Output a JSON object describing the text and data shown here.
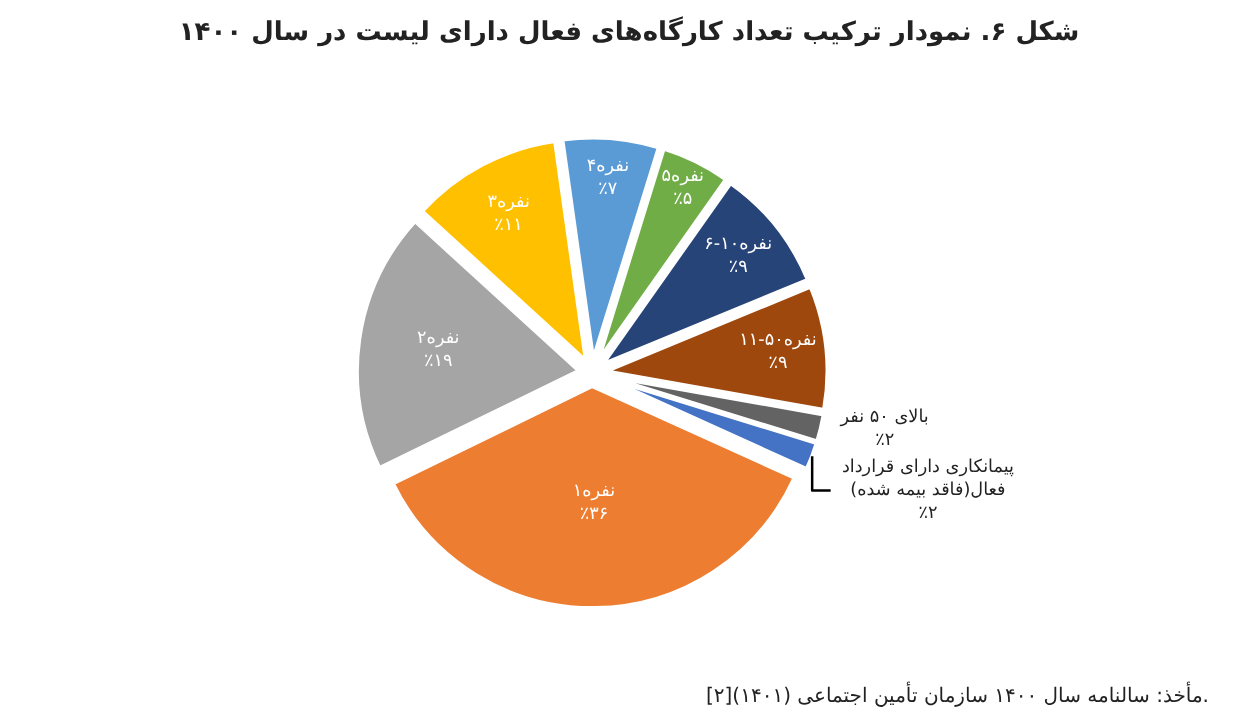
{
  "chart_data": {
    "type": "pie",
    "title": "شکل ۶. نمودار ترکیب تعداد کارگاه‌های فعال دارای لیست در سال ۱۴۰۰",
    "categories": [
      "۴نفره",
      "۵نفره",
      "۶-۱۰نفره",
      "۱۱-۵۰نفره",
      "بالای ۵۰ نفر",
      "پیمانکاری دارای قرارداد فعال(فاقد بیمه شده)",
      "۱نفره",
      "۲نفره",
      "۳نفره"
    ],
    "values": [
      7,
      5,
      9,
      9,
      2,
      2,
      36,
      19,
      11
    ],
    "value_labels": [
      "٪۷",
      "٪۵",
      "٪۹",
      "٪۹",
      "٪۲",
      "٪۲",
      "٪۳۶",
      "٪۱۹",
      "٪۱۱"
    ],
    "colors": [
      "#5b9bd5",
      "#70ad47",
      "#264478",
      "#9e480e",
      "#636363",
      "#4472c4",
      "#ed7d31",
      "#a5a5a5",
      "#ffc000"
    ],
    "legend": false,
    "annotations": [
      "مأخذ: سالنامه سال ۱۴۰۰ سازمان تأمین اجتماعی (۱۴۰۱)[۲]."
    ]
  }
}
